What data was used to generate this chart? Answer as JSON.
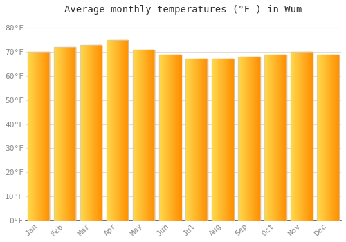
{
  "title": "Average monthly temperatures (°F ) in Wum",
  "months": [
    "Jan",
    "Feb",
    "Mar",
    "Apr",
    "May",
    "Jun",
    "Jul",
    "Aug",
    "Sep",
    "Oct",
    "Nov",
    "Dec"
  ],
  "values": [
    70,
    72,
    73,
    75,
    71,
    69,
    67,
    67,
    68,
    69,
    70,
    69
  ],
  "bar_color_left": "#FFD966",
  "bar_color_right": "#F5A800",
  "bar_edge_color": "#CCCCCC",
  "background_color": "#FFFFFF",
  "plot_bg_color": "#FFFFFF",
  "yticks": [
    0,
    10,
    20,
    30,
    40,
    50,
    60,
    70,
    80
  ],
  "ytick_labels": [
    "0°F",
    "10°F",
    "20°F",
    "30°F",
    "40°F",
    "50°F",
    "60°F",
    "70°F",
    "80°F"
  ],
  "ylim": [
    0,
    84
  ],
  "grid_color": "#DDDDDD",
  "title_fontsize": 10,
  "tick_fontsize": 8,
  "font_family": "monospace"
}
